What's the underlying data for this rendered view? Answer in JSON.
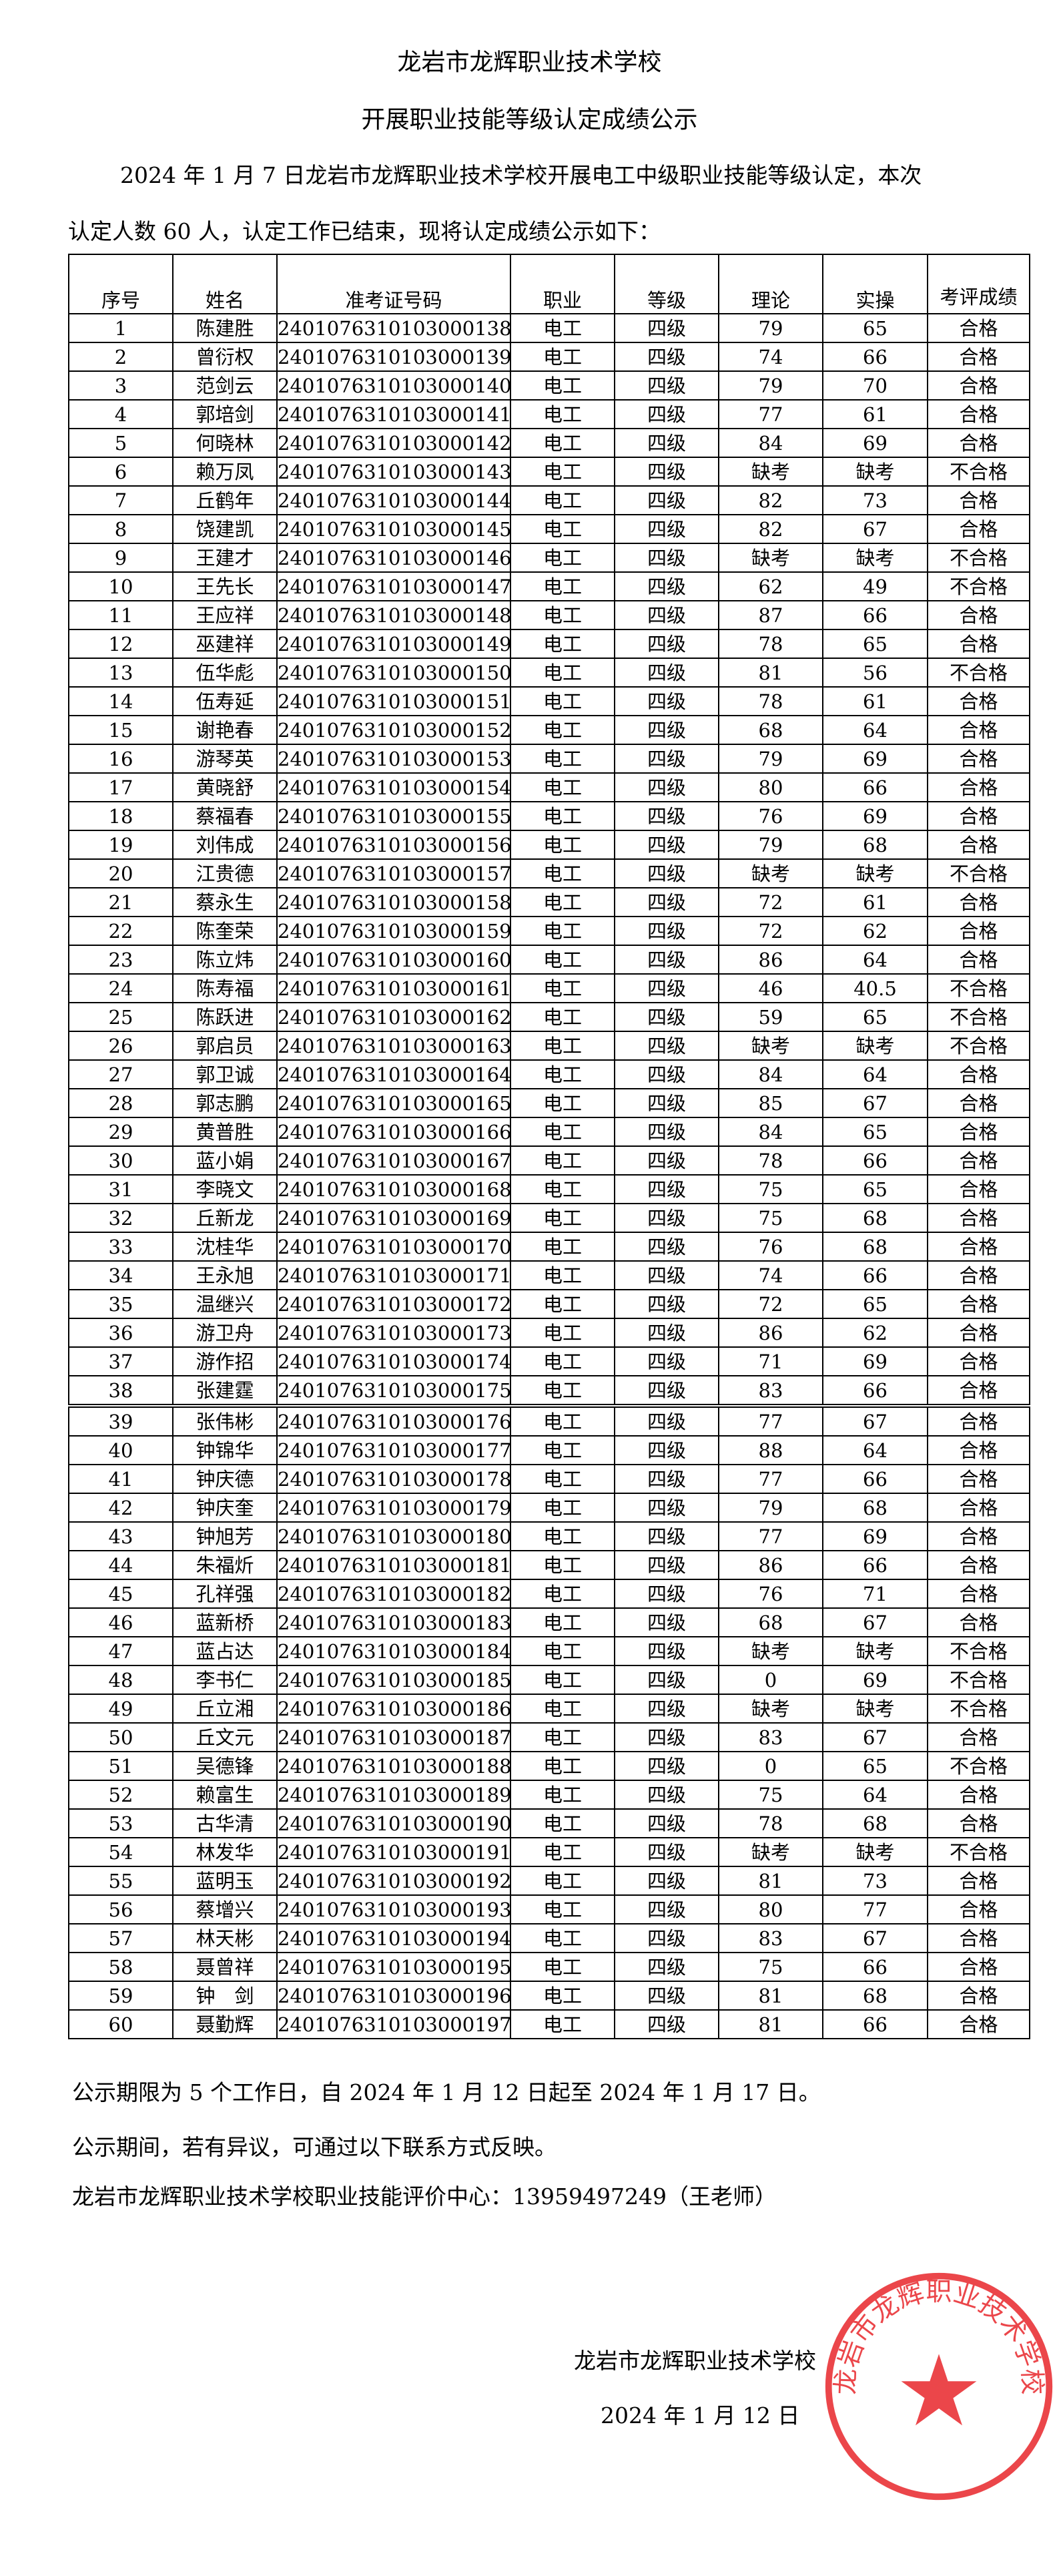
{
  "header": {
    "title_line1": "龙岩市龙辉职业技术学校",
    "title_line2": "开展职业技能等级认定成绩公示",
    "intro_line1": "2024 年 1 月 7 日龙岩市龙辉职业技术学校开展电工中级职业技能等级认定，本次",
    "intro_line2": "认定人数 60 人，认定工作已结束，现将认定成绩公示如下："
  },
  "table": {
    "columns": [
      "序号",
      "姓名",
      "准考证号码",
      "职业",
      "等级",
      "理论",
      "实操",
      "考评成绩"
    ],
    "rows": [
      [
        "1",
        "陈建胜",
        "2401076310103000138",
        "电工",
        "四级",
        "79",
        "65",
        "合格"
      ],
      [
        "2",
        "曾衍权",
        "2401076310103000139",
        "电工",
        "四级",
        "74",
        "66",
        "合格"
      ],
      [
        "3",
        "范剑云",
        "2401076310103000140",
        "电工",
        "四级",
        "79",
        "70",
        "合格"
      ],
      [
        "4",
        "郭培剑",
        "2401076310103000141",
        "电工",
        "四级",
        "77",
        "61",
        "合格"
      ],
      [
        "5",
        "何晓林",
        "2401076310103000142",
        "电工",
        "四级",
        "84",
        "69",
        "合格"
      ],
      [
        "6",
        "赖万凤",
        "2401076310103000143",
        "电工",
        "四级",
        "缺考",
        "缺考",
        "不合格"
      ],
      [
        "7",
        "丘鹤年",
        "2401076310103000144",
        "电工",
        "四级",
        "82",
        "73",
        "合格"
      ],
      [
        "8",
        "饶建凯",
        "2401076310103000145",
        "电工",
        "四级",
        "82",
        "67",
        "合格"
      ],
      [
        "9",
        "王建才",
        "2401076310103000146",
        "电工",
        "四级",
        "缺考",
        "缺考",
        "不合格"
      ],
      [
        "10",
        "王先长",
        "2401076310103000147",
        "电工",
        "四级",
        "62",
        "49",
        "不合格"
      ],
      [
        "11",
        "王应祥",
        "2401076310103000148",
        "电工",
        "四级",
        "87",
        "66",
        "合格"
      ],
      [
        "12",
        "巫建祥",
        "2401076310103000149",
        "电工",
        "四级",
        "78",
        "65",
        "合格"
      ],
      [
        "13",
        "伍华彪",
        "2401076310103000150",
        "电工",
        "四级",
        "81",
        "56",
        "不合格"
      ],
      [
        "14",
        "伍寿延",
        "2401076310103000151",
        "电工",
        "四级",
        "78",
        "61",
        "合格"
      ],
      [
        "15",
        "谢艳春",
        "2401076310103000152",
        "电工",
        "四级",
        "68",
        "64",
        "合格"
      ],
      [
        "16",
        "游琴英",
        "2401076310103000153",
        "电工",
        "四级",
        "79",
        "69",
        "合格"
      ],
      [
        "17",
        "黄晓舒",
        "2401076310103000154",
        "电工",
        "四级",
        "80",
        "66",
        "合格"
      ],
      [
        "18",
        "蔡福春",
        "2401076310103000155",
        "电工",
        "四级",
        "76",
        "69",
        "合格"
      ],
      [
        "19",
        "刘伟成",
        "2401076310103000156",
        "电工",
        "四级",
        "79",
        "68",
        "合格"
      ],
      [
        "20",
        "江贵德",
        "2401076310103000157",
        "电工",
        "四级",
        "缺考",
        "缺考",
        "不合格"
      ],
      [
        "21",
        "蔡永生",
        "2401076310103000158",
        "电工",
        "四级",
        "72",
        "61",
        "合格"
      ],
      [
        "22",
        "陈奎荣",
        "2401076310103000159",
        "电工",
        "四级",
        "72",
        "62",
        "合格"
      ],
      [
        "23",
        "陈立炜",
        "2401076310103000160",
        "电工",
        "四级",
        "86",
        "64",
        "合格"
      ],
      [
        "24",
        "陈寿福",
        "2401076310103000161",
        "电工",
        "四级",
        "46",
        "40.5",
        "不合格"
      ],
      [
        "25",
        "陈跃进",
        "2401076310103000162",
        "电工",
        "四级",
        "59",
        "65",
        "不合格"
      ],
      [
        "26",
        "郭启员",
        "2401076310103000163",
        "电工",
        "四级",
        "缺考",
        "缺考",
        "不合格"
      ],
      [
        "27",
        "郭卫诚",
        "2401076310103000164",
        "电工",
        "四级",
        "84",
        "64",
        "合格"
      ],
      [
        "28",
        "郭志鹏",
        "2401076310103000165",
        "电工",
        "四级",
        "85",
        "67",
        "合格"
      ],
      [
        "29",
        "黄普胜",
        "2401076310103000166",
        "电工",
        "四级",
        "84",
        "65",
        "合格"
      ],
      [
        "30",
        "蓝小娟",
        "2401076310103000167",
        "电工",
        "四级",
        "78",
        "66",
        "合格"
      ],
      [
        "31",
        "李晓文",
        "2401076310103000168",
        "电工",
        "四级",
        "75",
        "65",
        "合格"
      ],
      [
        "32",
        "丘新龙",
        "2401076310103000169",
        "电工",
        "四级",
        "75",
        "68",
        "合格"
      ],
      [
        "33",
        "沈桂华",
        "2401076310103000170",
        "电工",
        "四级",
        "76",
        "68",
        "合格"
      ],
      [
        "34",
        "王永旭",
        "2401076310103000171",
        "电工",
        "四级",
        "74",
        "66",
        "合格"
      ],
      [
        "35",
        "温继兴",
        "2401076310103000172",
        "电工",
        "四级",
        "72",
        "65",
        "合格"
      ],
      [
        "36",
        "游卫舟",
        "2401076310103000173",
        "电工",
        "四级",
        "86",
        "62",
        "合格"
      ],
      [
        "37",
        "游作招",
        "2401076310103000174",
        "电工",
        "四级",
        "71",
        "69",
        "合格"
      ],
      [
        "38",
        "张建霆",
        "2401076310103000175",
        "电工",
        "四级",
        "83",
        "66",
        "合格"
      ],
      [
        "39",
        "张伟彬",
        "2401076310103000176",
        "电工",
        "四级",
        "77",
        "67",
        "合格"
      ],
      [
        "40",
        "钟锦华",
        "2401076310103000177",
        "电工",
        "四级",
        "88",
        "64",
        "合格"
      ],
      [
        "41",
        "钟庆德",
        "2401076310103000178",
        "电工",
        "四级",
        "77",
        "66",
        "合格"
      ],
      [
        "42",
        "钟庆奎",
        "2401076310103000179",
        "电工",
        "四级",
        "79",
        "68",
        "合格"
      ],
      [
        "43",
        "钟旭芳",
        "2401076310103000180",
        "电工",
        "四级",
        "77",
        "69",
        "合格"
      ],
      [
        "44",
        "朱福炘",
        "2401076310103000181",
        "电工",
        "四级",
        "86",
        "66",
        "合格"
      ],
      [
        "45",
        "孔祥强",
        "2401076310103000182",
        "电工",
        "四级",
        "76",
        "71",
        "合格"
      ],
      [
        "46",
        "蓝新桥",
        "2401076310103000183",
        "电工",
        "四级",
        "68",
        "67",
        "合格"
      ],
      [
        "47",
        "蓝占达",
        "2401076310103000184",
        "电工",
        "四级",
        "缺考",
        "缺考",
        "不合格"
      ],
      [
        "48",
        "李书仁",
        "2401076310103000185",
        "电工",
        "四级",
        "0",
        "69",
        "不合格"
      ],
      [
        "49",
        "丘立湘",
        "2401076310103000186",
        "电工",
        "四级",
        "缺考",
        "缺考",
        "不合格"
      ],
      [
        "50",
        "丘文元",
        "2401076310103000187",
        "电工",
        "四级",
        "83",
        "67",
        "合格"
      ],
      [
        "51",
        "吴德锋",
        "2401076310103000188",
        "电工",
        "四级",
        "0",
        "65",
        "不合格"
      ],
      [
        "52",
        "赖富生",
        "2401076310103000189",
        "电工",
        "四级",
        "75",
        "64",
        "合格"
      ],
      [
        "53",
        "古华清",
        "2401076310103000190",
        "电工",
        "四级",
        "78",
        "68",
        "合格"
      ],
      [
        "54",
        "林发华",
        "2401076310103000191",
        "电工",
        "四级",
        "缺考",
        "缺考",
        "不合格"
      ],
      [
        "55",
        "蓝明玉",
        "2401076310103000192",
        "电工",
        "四级",
        "81",
        "73",
        "合格"
      ],
      [
        "56",
        "蔡增兴",
        "2401076310103000193",
        "电工",
        "四级",
        "80",
        "77",
        "合格"
      ],
      [
        "57",
        "林天彬",
        "2401076310103000194",
        "电工",
        "四级",
        "83",
        "67",
        "合格"
      ],
      [
        "58",
        "聂曾祥",
        "2401076310103000195",
        "电工",
        "四级",
        "75",
        "66",
        "合格"
      ],
      [
        "59",
        "钟　剑",
        "2401076310103000196",
        "电工",
        "四级",
        "81",
        "68",
        "合格"
      ],
      [
        "60",
        "聂勤辉",
        "2401076310103000197",
        "电工",
        "四级",
        "81",
        "66",
        "合格"
      ]
    ]
  },
  "footer": {
    "period": "公示期限为 5 个工作日，自 2024 年 1 月 12 日起至 2024 年 1 月 17 日。",
    "objection": "公示期间，若有异议，可通过以下联系方式反映。",
    "contact": "龙岩市龙辉职业技术学校职业技能评价中心：13959497249（王老师）",
    "signature": "龙岩市龙辉职业技术学校",
    "date": "2024 年 1 月 12 日"
  },
  "seal": {
    "text": "龙岩市龙辉职业技术学校",
    "color": "#e8262b",
    "icon": "star-icon"
  }
}
